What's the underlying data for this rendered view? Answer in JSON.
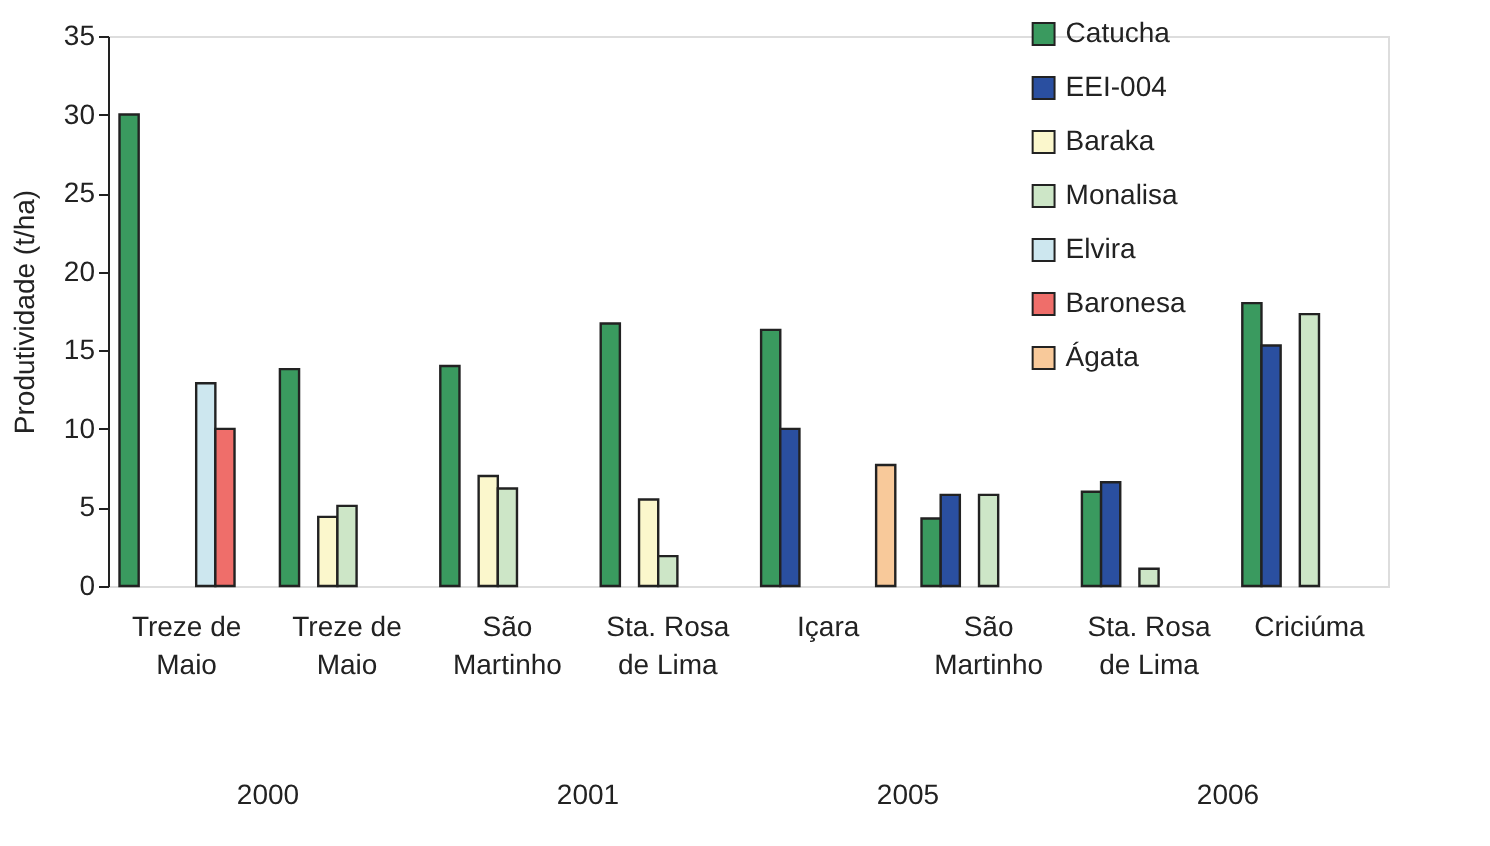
{
  "chart_data": {
    "type": "bar",
    "ylabel": "Produtividade (t/ha)",
    "categories": [
      "Treze de Maio",
      "Treze de Maio",
      "São Martinho",
      "Sta. Rosa de Lima",
      "Içara",
      "São Martinho",
      "Sta. Rosa de Lima",
      "Criciúma"
    ],
    "series": [
      {
        "name": "Catucha",
        "color": "#3a9a5f",
        "values": [
          30,
          13.8,
          14,
          16.7,
          16.3,
          4.3,
          6,
          18
        ]
      },
      {
        "name": "EEI-004",
        "color": "#2a4fa0",
        "values": [
          null,
          null,
          null,
          null,
          10,
          5.8,
          6.6,
          15.3
        ]
      },
      {
        "name": "Baraka",
        "color": "#fbf7cc",
        "values": [
          null,
          4.4,
          7,
          5.5,
          null,
          null,
          null,
          null
        ]
      },
      {
        "name": "Monalisa",
        "color": "#cde6c7",
        "values": [
          null,
          5.1,
          6.2,
          1.9,
          null,
          5.8,
          1.1,
          17.3
        ]
      },
      {
        "name": "Elvira",
        "color": "#cde7ef",
        "values": [
          12.9,
          null,
          null,
          null,
          null,
          null,
          null,
          null
        ]
      },
      {
        "name": "Baronesa",
        "color": "#ef6e6a",
        "values": [
          10,
          null,
          null,
          null,
          null,
          null,
          null,
          null
        ]
      },
      {
        "name": "Ágata",
        "color": "#f8c99a",
        "values": [
          null,
          null,
          null,
          null,
          7.7,
          null,
          null,
          null
        ]
      }
    ],
    "annotations": [
      "2000",
      "2001",
      "2005",
      "2006"
    ],
    "ylim": [
      0,
      35
    ],
    "yticks": [
      0,
      5,
      10,
      15,
      20,
      25,
      30,
      35
    ],
    "grid": false,
    "legend": "top right"
  }
}
